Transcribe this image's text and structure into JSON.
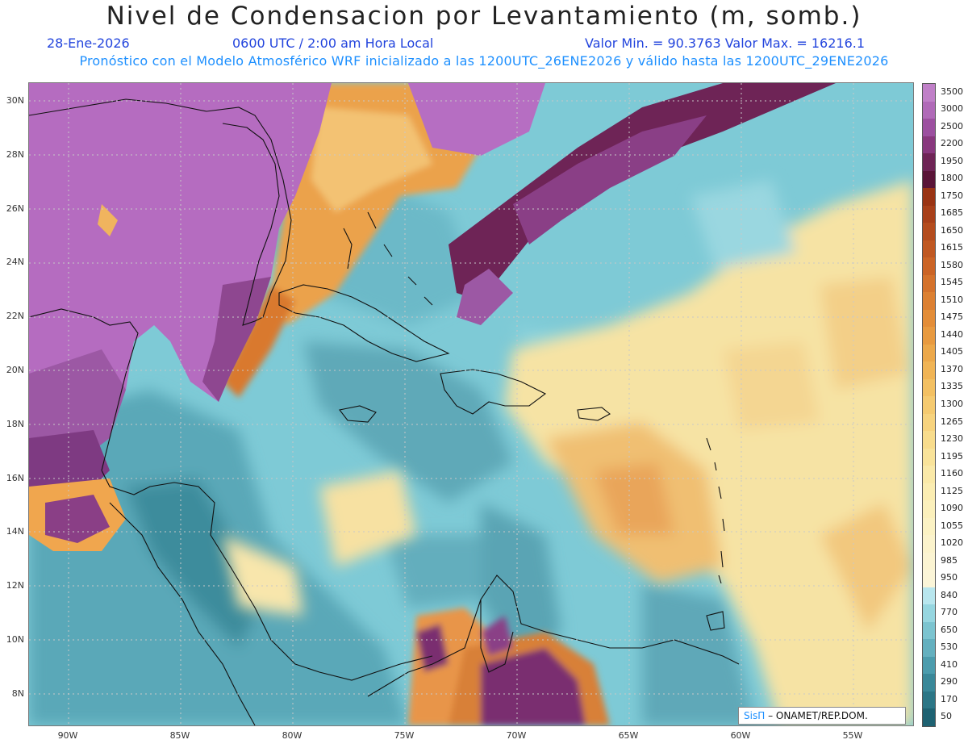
{
  "title": "Nivel de Condensacion por Levantamiento (m, somb.)",
  "date": "28-Ene-2026",
  "time": "0600 UTC / 2:00 am Hora Local",
  "minmax": "Valor Min. = 90.3763  Valor Max. = 16216.1",
  "model_line": "Pronóstico con el Modelo Atmosférico WRF inicializado a las 1200UTC_26ENE2026 y válido hasta las  1200UTC_29ENE2026",
  "credit_brand": "SisΠ",
  "credit_text": "– ONAMET/REP.DOM.",
  "lat_labels": [
    "30N",
    "28N",
    "26N",
    "24N",
    "22N",
    "20N",
    "18N",
    "16N",
    "14N",
    "12N",
    "10N",
    "8N"
  ],
  "lon_labels": [
    "90W",
    "85W",
    "80W",
    "75W",
    "70W",
    "65W",
    "60W",
    "55W"
  ],
  "colorbar": {
    "labels": [
      "3500",
      "3000",
      "2500",
      "2200",
      "1950",
      "1800",
      "1750",
      "1685",
      "1650",
      "1615",
      "1580",
      "1545",
      "1510",
      "1475",
      "1440",
      "1405",
      "1370",
      "1335",
      "1300",
      "1265",
      "1230",
      "1195",
      "1160",
      "1125",
      "1090",
      "1055",
      "1020",
      "985",
      "950",
      "840",
      "770",
      "650",
      "530",
      "410",
      "290",
      "170",
      "50"
    ],
    "colors": [
      "#c080c8",
      "#b06ab8",
      "#9c50a0",
      "#88387e",
      "#6e2456",
      "#5a1438",
      "#9a3414",
      "#a8401a",
      "#b44c1e",
      "#c05822",
      "#cb6426",
      "#d4722c",
      "#dc8032",
      "#e38d38",
      "#e89a40",
      "#eca84a",
      "#f0b455",
      "#f3c062",
      "#f5ca70",
      "#f7d37e",
      "#f8dc8c",
      "#f9e39a",
      "#fae9a8",
      "#fbedb2",
      "#fbf0bc",
      "#fbf2c4",
      "#fbf3cc",
      "#fbf4d2",
      "#fbf5d8",
      "#b8e6ee",
      "#96d6e0",
      "#7cc4d0",
      "#64b0bf",
      "#4c9cad",
      "#3a8899",
      "#2c7686",
      "#1e6272"
    ]
  }
}
